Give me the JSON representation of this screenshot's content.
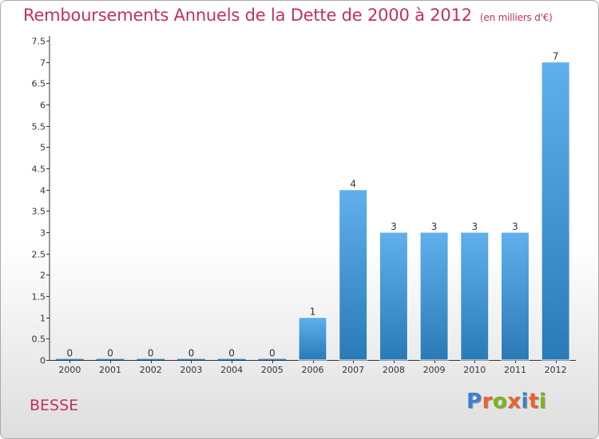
{
  "title": "Remboursements Annuels de la Dette de 2000 à 2012",
  "unit_label": "(en milliers d'€)",
  "commune": "BESSE",
  "logo": {
    "letters": [
      "P",
      "r",
      "o",
      "x",
      "i",
      "t",
      "i"
    ],
    "colors": [
      "#3b7fd0",
      "#e8642c",
      "#7ab51d",
      "#e8642c",
      "#3b7fd0",
      "#e8642c",
      "#7ab51d"
    ]
  },
  "colors": {
    "title": "#c0315f",
    "bar_light": "#5fb0ec",
    "bar_dark": "#2a7ab8"
  },
  "chart_data": {
    "type": "bar",
    "title": "Remboursements Annuels de la Dette de 2000 à 2012",
    "ylabel": "en milliers d'€",
    "xlabel": "",
    "categories": [
      "2000",
      "2001",
      "2002",
      "2003",
      "2004",
      "2005",
      "2006",
      "2007",
      "2008",
      "2009",
      "2010",
      "2011",
      "2012"
    ],
    "values": [
      0,
      0,
      0,
      0,
      0,
      0,
      1,
      4,
      3,
      3,
      3,
      3,
      7
    ],
    "value_labels": [
      "0",
      "0",
      "0",
      "0",
      "0",
      "0",
      "1",
      "4",
      "3",
      "3",
      "3",
      "3",
      "7"
    ],
    "ylim": [
      0,
      7.5
    ],
    "yticks": [
      0,
      0.5,
      1,
      1.5,
      2,
      2.5,
      3,
      3.5,
      4,
      4.5,
      5,
      5.5,
      6,
      6.5,
      7,
      7.5
    ],
    "ytick_labels": [
      "0",
      "0.5",
      "1",
      "1.5",
      "2",
      "2.5",
      "3",
      "3.5",
      "4",
      "4.5",
      "5",
      "5.5",
      "6",
      "6.5",
      "7",
      "7.5"
    ],
    "grid": false
  }
}
